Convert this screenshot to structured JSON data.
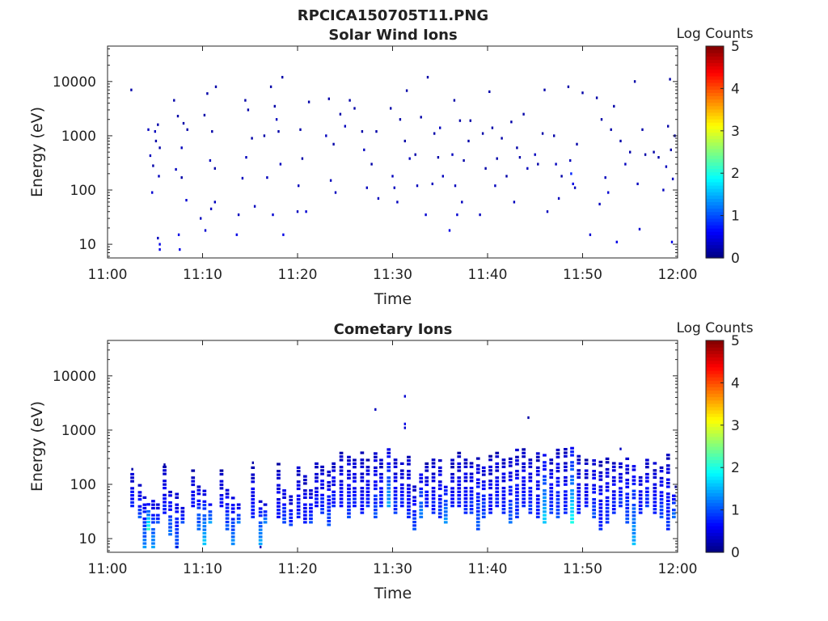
{
  "figure": {
    "title": "RPCICA150705T11.PNG"
  },
  "colors": {
    "background": "#ffffff",
    "axis": "#262626",
    "text": "#222222"
  },
  "chart_data": [
    {
      "type": "heatmap",
      "title": "Solar Wind Ions",
      "xlabel": "Time",
      "ylabel": "Energy (eV)",
      "x_ticklabels": [
        "11:00",
        "11:10",
        "11:20",
        "11:30",
        "11:40",
        "11:50",
        "12:00"
      ],
      "x_tick_minutes": [
        0,
        10,
        20,
        30,
        40,
        50,
        60
      ],
      "y_ticklabels": [
        "10",
        "100",
        "1000",
        "10000"
      ],
      "y_tick_values": [
        10,
        100,
        1000,
        10000
      ],
      "xlim_minutes": [
        0,
        60
      ],
      "ylim": [
        5.6,
        45000
      ],
      "yscale": "log",
      "grid": false,
      "colorbar": {
        "label": "Log Counts",
        "ticklabels": [
          "0",
          "1",
          "2",
          "3",
          "4",
          "5"
        ],
        "range": [
          0,
          5
        ],
        "colormap": "jet"
      },
      "points": [
        [
          2.5,
          7000,
          0.2
        ],
        [
          4.3,
          1300,
          0.3
        ],
        [
          4.5,
          430,
          0.3
        ],
        [
          4.7,
          90,
          0.4
        ],
        [
          4.8,
          280,
          0.2
        ],
        [
          5.0,
          1200,
          0.3
        ],
        [
          5.1,
          800,
          0.2
        ],
        [
          5.3,
          1600,
          0.2
        ],
        [
          5.3,
          13,
          0.3
        ],
        [
          5.4,
          180,
          0.3
        ],
        [
          5.5,
          600,
          0.2
        ],
        [
          5.5,
          8,
          0.5
        ],
        [
          5.5,
          10,
          0.5
        ],
        [
          7.0,
          4500,
          0.2
        ],
        [
          7.2,
          240,
          0.3
        ],
        [
          7.4,
          2300,
          0.2
        ],
        [
          7.5,
          15,
          0.5
        ],
        [
          7.6,
          8,
          0.5
        ],
        [
          7.8,
          600,
          0.3
        ],
        [
          7.8,
          170,
          0.2
        ],
        [
          8.0,
          1700,
          0.2
        ],
        [
          8.3,
          65,
          0.4
        ],
        [
          8.4,
          1300,
          0.2
        ],
        [
          9.8,
          30,
          0.3
        ],
        [
          10.2,
          2400,
          0.2
        ],
        [
          10.3,
          18,
          0.4
        ],
        [
          10.5,
          6000,
          0.2
        ],
        [
          10.8,
          350,
          0.3
        ],
        [
          10.9,
          45,
          0.3
        ],
        [
          11.0,
          1200,
          0.2
        ],
        [
          11.3,
          250,
          0.2
        ],
        [
          11.3,
          60,
          0.3
        ],
        [
          11.4,
          8000,
          0.2
        ],
        [
          13.6,
          15,
          0.5
        ],
        [
          13.8,
          35,
          0.3
        ],
        [
          14.2,
          165,
          0.3
        ],
        [
          14.5,
          4500,
          0.2
        ],
        [
          14.6,
          400,
          0.3
        ],
        [
          14.8,
          3000,
          0.2
        ],
        [
          15.2,
          900,
          0.2
        ],
        [
          15.5,
          50,
          0.3
        ],
        [
          16.5,
          1000,
          0.2
        ],
        [
          16.8,
          170,
          0.3
        ],
        [
          17.2,
          8000,
          0.2
        ],
        [
          17.4,
          35,
          0.4
        ],
        [
          17.6,
          3500,
          0.2
        ],
        [
          17.8,
          2000,
          0.3
        ],
        [
          18.0,
          1200,
          0.2
        ],
        [
          18.2,
          300,
          0.3
        ],
        [
          18.4,
          12000,
          0.2
        ],
        [
          18.5,
          15,
          0.5
        ],
        [
          20.0,
          40,
          0.3
        ],
        [
          20.1,
          120,
          0.3
        ],
        [
          20.3,
          1300,
          0.2
        ],
        [
          20.5,
          380,
          0.2
        ],
        [
          20.9,
          40,
          0.4
        ],
        [
          21.2,
          4200,
          0.2
        ],
        [
          23.0,
          1000,
          0.3
        ],
        [
          23.3,
          4800,
          0.2
        ],
        [
          23.5,
          150,
          0.3
        ],
        [
          23.8,
          700,
          0.2
        ],
        [
          24.0,
          90,
          0.3
        ],
        [
          24.5,
          2500,
          0.2
        ],
        [
          25.0,
          1500,
          0.3
        ],
        [
          25.5,
          4500,
          0.2
        ],
        [
          26.0,
          3200,
          0.2
        ],
        [
          26.8,
          1200,
          0.2
        ],
        [
          27.0,
          550,
          0.3
        ],
        [
          27.3,
          110,
          0.3
        ],
        [
          27.8,
          300,
          0.2
        ],
        [
          28.3,
          1200,
          0.2
        ],
        [
          28.5,
          70,
          0.3
        ],
        [
          29.8,
          3200,
          0.2
        ],
        [
          30.0,
          180,
          0.3
        ],
        [
          30.2,
          110,
          0.3
        ],
        [
          30.5,
          60,
          0.3
        ],
        [
          30.8,
          2000,
          0.2
        ],
        [
          31.3,
          800,
          0.2
        ],
        [
          31.5,
          6800,
          0.2
        ],
        [
          31.8,
          380,
          0.3
        ],
        [
          32.4,
          450,
          0.2
        ],
        [
          32.6,
          120,
          0.3
        ],
        [
          33.0,
          2200,
          0.2
        ],
        [
          33.5,
          35,
          0.4
        ],
        [
          33.7,
          12000,
          0.2
        ],
        [
          34.2,
          130,
          0.3
        ],
        [
          34.4,
          1100,
          0.2
        ],
        [
          34.8,
          400,
          0.2
        ],
        [
          35.0,
          1400,
          0.3
        ],
        [
          35.3,
          180,
          0.3
        ],
        [
          36.0,
          18,
          0.5
        ],
        [
          36.3,
          450,
          0.3
        ],
        [
          36.5,
          4500,
          0.2
        ],
        [
          36.6,
          120,
          0.3
        ],
        [
          36.8,
          35,
          0.4
        ],
        [
          37.1,
          1900,
          0.2
        ],
        [
          37.3,
          60,
          0.3
        ],
        [
          37.5,
          350,
          0.2
        ],
        [
          38.0,
          800,
          0.2
        ],
        [
          38.2,
          1900,
          0.2
        ],
        [
          39.2,
          35,
          0.3
        ],
        [
          39.5,
          1100,
          0.2
        ],
        [
          39.8,
          250,
          0.2
        ],
        [
          40.2,
          6500,
          0.2
        ],
        [
          40.5,
          1400,
          0.2
        ],
        [
          40.8,
          120,
          0.3
        ],
        [
          41.0,
          380,
          0.2
        ],
        [
          41.5,
          900,
          0.2
        ],
        [
          42.0,
          180,
          0.2
        ],
        [
          42.5,
          1800,
          0.2
        ],
        [
          42.8,
          60,
          0.3
        ],
        [
          43.1,
          600,
          0.2
        ],
        [
          43.4,
          400,
          0.2
        ],
        [
          43.8,
          2500,
          0.2
        ],
        [
          44.2,
          250,
          0.3
        ],
        [
          45.0,
          450,
          0.3
        ],
        [
          45.3,
          300,
          0.2
        ],
        [
          45.8,
          1100,
          0.2
        ],
        [
          46.0,
          7000,
          0.2
        ],
        [
          46.3,
          40,
          0.3
        ],
        [
          47.0,
          1000,
          0.2
        ],
        [
          47.2,
          300,
          0.3
        ],
        [
          47.5,
          70,
          0.3
        ],
        [
          47.8,
          180,
          0.2
        ],
        [
          48.5,
          8000,
          0.2
        ],
        [
          48.7,
          350,
          0.3
        ],
        [
          48.8,
          200,
          0.8
        ],
        [
          49.0,
          130,
          0.5
        ],
        [
          49.2,
          110,
          0.3
        ],
        [
          49.4,
          700,
          0.2
        ],
        [
          50.0,
          6200,
          0.2
        ],
        [
          50.8,
          15,
          0.4
        ],
        [
          51.5,
          5000,
          0.2
        ],
        [
          51.8,
          55,
          0.3
        ],
        [
          52.0,
          2000,
          0.2
        ],
        [
          52.4,
          170,
          0.3
        ],
        [
          52.7,
          90,
          0.4
        ],
        [
          53.0,
          1300,
          0.2
        ],
        [
          53.3,
          3500,
          0.2
        ],
        [
          53.6,
          11,
          0.5
        ],
        [
          54.0,
          800,
          0.2
        ],
        [
          54.5,
          300,
          0.3
        ],
        [
          55.0,
          500,
          0.2
        ],
        [
          55.5,
          10000,
          0.2
        ],
        [
          55.8,
          130,
          0.3
        ],
        [
          56.0,
          19,
          0.4
        ],
        [
          56.3,
          1300,
          0.2
        ],
        [
          56.6,
          450,
          0.2
        ],
        [
          57.5,
          500,
          0.2
        ],
        [
          58.0,
          400,
          0.2
        ],
        [
          58.5,
          100,
          0.3
        ],
        [
          58.8,
          270,
          0.3
        ],
        [
          59.0,
          1500,
          0.2
        ],
        [
          59.2,
          11000,
          0.2
        ],
        [
          59.3,
          550,
          0.2
        ],
        [
          59.4,
          11,
          0.5
        ],
        [
          59.5,
          160,
          0.3
        ],
        [
          59.7,
          1000,
          0.2
        ]
      ]
    },
    {
      "type": "heatmap",
      "title": "Cometary Ions",
      "xlabel": "Time",
      "ylabel": "Energy (eV)",
      "x_ticklabels": [
        "11:00",
        "11:10",
        "11:20",
        "11:30",
        "11:40",
        "11:50",
        "12:00"
      ],
      "x_tick_minutes": [
        0,
        10,
        20,
        30,
        40,
        50,
        60
      ],
      "y_ticklabels": [
        "10",
        "100",
        "1000",
        "10000"
      ],
      "y_tick_values": [
        10,
        100,
        1000,
        10000
      ],
      "xlim_minutes": [
        0,
        60
      ],
      "ylim": [
        5.6,
        45000
      ],
      "yscale": "log",
      "grid": false,
      "colorbar": {
        "label": "Log Counts",
        "ticklabels": [
          "0",
          "1",
          "2",
          "3",
          "4",
          "5"
        ],
        "range": [
          0,
          5
        ],
        "colormap": "jet"
      },
      "columns": [
        [
          2.6,
          40,
          190,
          0.7
        ],
        [
          3.4,
          25,
          100,
          0.9
        ],
        [
          3.9,
          7,
          60,
          1.2
        ],
        [
          4.3,
          15,
          45,
          2.0
        ],
        [
          4.8,
          7,
          50,
          1.3
        ],
        [
          5.3,
          20,
          45,
          0.9
        ],
        [
          6.0,
          30,
          220,
          0.7
        ],
        [
          6.6,
          12,
          80,
          1.1
        ],
        [
          7.3,
          7,
          70,
          1.0
        ],
        [
          7.9,
          20,
          45,
          0.8
        ],
        [
          9.0,
          40,
          200,
          0.6
        ],
        [
          9.6,
          15,
          110,
          1.1
        ],
        [
          10.2,
          8,
          80,
          1.5
        ],
        [
          10.8,
          20,
          45,
          1.3
        ],
        [
          12.0,
          40,
          180,
          0.6
        ],
        [
          12.6,
          15,
          90,
          1.0
        ],
        [
          13.2,
          8,
          60,
          1.2
        ],
        [
          13.8,
          20,
          45,
          1.1
        ],
        [
          15.3,
          25,
          220,
          0.7
        ],
        [
          16.1,
          8,
          50,
          1.4
        ],
        [
          16.6,
          20,
          45,
          1.2
        ],
        [
          18.0,
          25,
          250,
          0.6
        ],
        [
          18.6,
          20,
          100,
          0.9
        ],
        [
          19.3,
          18,
          60,
          0.8
        ],
        [
          20.1,
          25,
          240,
          0.7
        ],
        [
          20.8,
          20,
          180,
          0.6
        ],
        [
          21.4,
          20,
          100,
          0.8
        ],
        [
          22.0,
          40,
          250,
          0.6
        ],
        [
          22.6,
          30,
          220,
          0.8
        ],
        [
          23.3,
          18,
          180,
          0.9
        ],
        [
          23.8,
          40,
          320,
          0.7
        ],
        [
          24.6,
          40,
          400,
          0.6
        ],
        [
          25.4,
          25,
          380,
          0.8
        ],
        [
          26.0,
          40,
          330,
          0.7
        ],
        [
          26.8,
          30,
          420,
          0.6
        ],
        [
          27.4,
          40,
          300,
          0.7
        ],
        [
          28.2,
          25,
          400,
          0.9
        ],
        [
          28.8,
          40,
          300,
          0.7
        ],
        [
          29.6,
          40,
          450,
          1.4
        ],
        [
          30.3,
          30,
          320,
          0.8
        ],
        [
          31.0,
          40,
          260,
          0.7
        ],
        [
          31.7,
          25,
          350,
          0.7
        ],
        [
          32.3,
          15,
          100,
          0.9
        ],
        [
          33.0,
          25,
          180,
          1.2
        ],
        [
          33.6,
          40,
          250,
          0.7
        ],
        [
          34.3,
          30,
          300,
          0.7
        ],
        [
          35.0,
          25,
          300,
          0.8
        ],
        [
          35.6,
          20,
          120,
          1.3
        ],
        [
          36.3,
          40,
          280,
          0.6
        ],
        [
          37.0,
          40,
          400,
          0.7
        ],
        [
          37.7,
          30,
          380,
          0.7
        ],
        [
          38.3,
          30,
          280,
          0.8
        ],
        [
          39.0,
          15,
          300,
          1.0
        ],
        [
          39.6,
          25,
          250,
          0.9
        ],
        [
          40.3,
          30,
          380,
          0.6
        ],
        [
          41.0,
          40,
          420,
          0.7
        ],
        [
          41.7,
          30,
          380,
          0.7
        ],
        [
          42.4,
          20,
          300,
          1.0
        ],
        [
          43.1,
          25,
          450,
          0.8
        ],
        [
          43.8,
          40,
          550,
          0.7
        ],
        [
          44.5,
          30,
          380,
          0.8
        ],
        [
          45.3,
          25,
          420,
          0.7
        ],
        [
          46.0,
          20,
          350,
          1.6
        ],
        [
          46.7,
          30,
          300,
          0.8
        ],
        [
          47.4,
          25,
          450,
          0.9
        ],
        [
          48.2,
          30,
          450,
          0.7
        ],
        [
          48.9,
          20,
          550,
          1.8
        ],
        [
          49.6,
          30,
          350,
          0.7
        ],
        [
          50.4,
          40,
          300,
          0.6
        ],
        [
          51.2,
          25,
          280,
          0.9
        ],
        [
          51.9,
          15,
          260,
          0.7
        ],
        [
          52.6,
          20,
          300,
          0.8
        ],
        [
          53.3,
          30,
          300,
          0.7
        ],
        [
          54.0,
          40,
          260,
          0.8
        ],
        [
          54.7,
          20,
          300,
          0.9
        ],
        [
          55.4,
          8,
          250,
          1.4
        ],
        [
          56.1,
          30,
          180,
          0.7
        ],
        [
          56.8,
          40,
          300,
          0.8
        ],
        [
          57.6,
          30,
          280,
          0.7
        ],
        [
          58.3,
          25,
          220,
          0.9
        ],
        [
          59.0,
          15,
          400,
          0.8
        ],
        [
          59.6,
          25,
          80,
          1.1
        ]
      ],
      "points": [
        [
          2.6,
          190,
          0.2
        ],
        [
          6.0,
          230,
          0.2
        ],
        [
          7.3,
          7,
          0.4
        ],
        [
          15.3,
          250,
          0.2
        ],
        [
          16.1,
          7,
          0.3
        ],
        [
          28.2,
          2400,
          0.3
        ],
        [
          31.3,
          4200,
          0.4
        ],
        [
          31.3,
          1300,
          0.5
        ],
        [
          31.3,
          1100,
          0.4
        ],
        [
          44.3,
          1700,
          0.2
        ],
        [
          54.0,
          450,
          0.3
        ],
        [
          59.8,
          90,
          0.3
        ]
      ]
    }
  ]
}
